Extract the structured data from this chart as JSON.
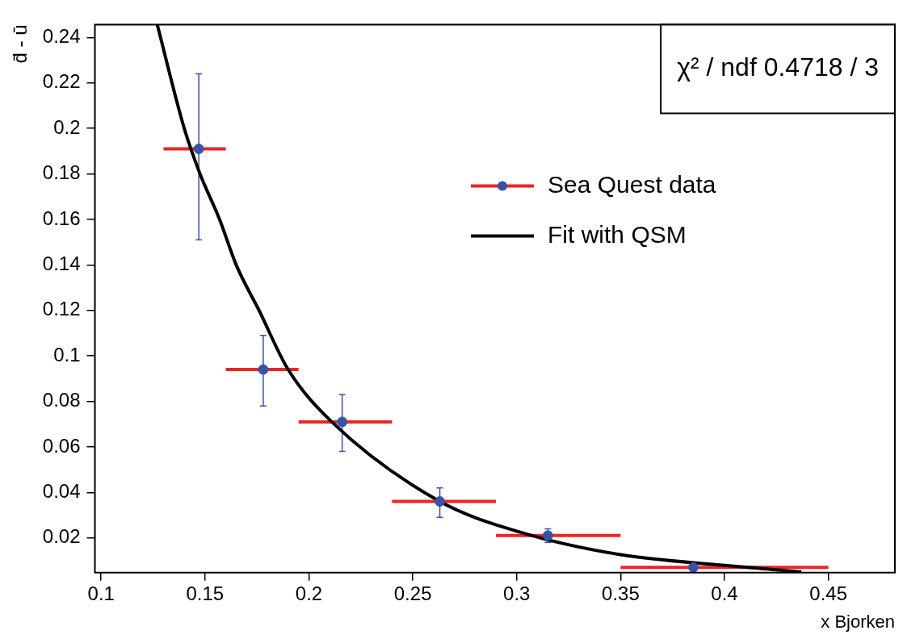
{
  "chart_data": {
    "type": "scatter",
    "xlabel": "x Bjorken",
    "ylabel": "d̄ - ū",
    "annotations": [
      "χ² / ndf 0.4718 / 3"
    ],
    "xlim": [
      0.097,
      0.482
    ],
    "xticks": [
      0.1,
      0.15,
      0.2,
      0.25,
      0.3,
      0.35,
      0.4,
      0.45
    ],
    "ylim": [
      0.0047,
      0.2457
    ],
    "yticks": [
      0.02,
      0.04,
      0.06,
      0.08,
      0.1,
      0.12,
      0.14,
      0.16,
      0.18,
      0.2,
      0.22,
      0.24
    ],
    "grid": false,
    "legend": "right",
    "series": [
      {
        "name": "Sea Quest data",
        "marker": "circle",
        "color": "#3853a4",
        "x": [
          0.147,
          0.178,
          0.216,
          0.263,
          0.315,
          0.385
        ],
        "values": [
          0.191,
          0.094,
          0.071,
          0.036,
          0.021,
          0.007
        ],
        "xerrors": [
          [
            0.13,
            0.16
          ],
          [
            0.16,
            0.195
          ],
          [
            0.195,
            0.24
          ],
          [
            0.24,
            0.29
          ],
          [
            0.29,
            0.35
          ],
          [
            0.35,
            0.45
          ]
        ],
        "errors": [
          [
            0.151,
            0.224
          ],
          [
            0.078,
            0.109
          ],
          [
            0.058,
            0.083
          ],
          [
            0.029,
            0.042
          ],
          [
            0.018,
            0.024
          ],
          null
        ]
      },
      {
        "name": "Fit with QSM",
        "type": "line",
        "marker": "none",
        "color": "#000000",
        "x": [
          0.127,
          0.14,
          0.1476,
          0.157,
          0.165,
          0.176,
          0.19,
          0.211,
          0.263,
          0.301,
          0.35,
          0.4,
          0.437
        ],
        "values": [
          0.2457,
          0.2,
          0.18,
          0.16,
          0.14,
          0.12,
          0.094,
          0.071,
          0.036,
          0.0227,
          0.0126,
          0.0079,
          0.005
        ]
      }
    ]
  }
}
